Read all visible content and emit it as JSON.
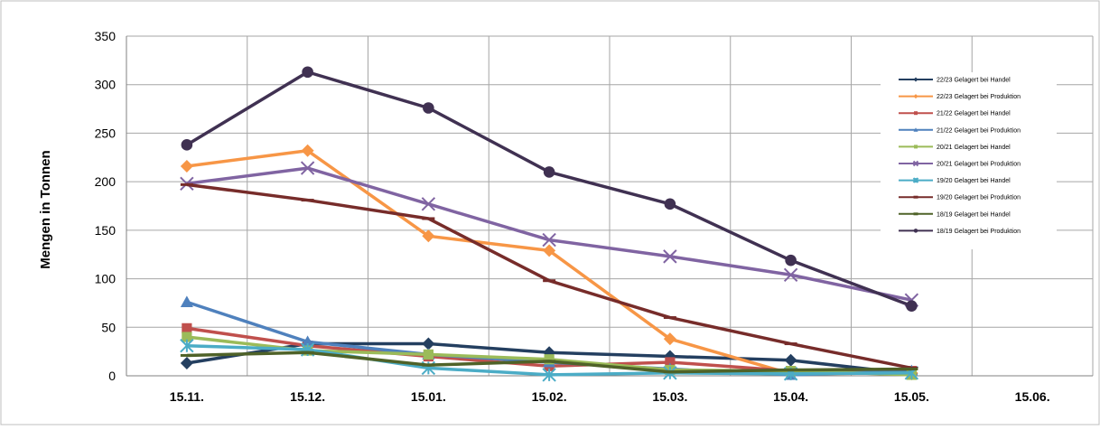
{
  "chart_data": {
    "type": "line",
    "title": "",
    "xlabel": "",
    "ylabel": "Mengen in Tonnen",
    "ylim": [
      0,
      350
    ],
    "yticks": [
      0,
      50,
      100,
      150,
      200,
      250,
      300,
      350
    ],
    "categories": [
      "15.11.",
      "15.12.",
      "15.01.",
      "15.02.",
      "15.03.",
      "15.04.",
      "15.05.",
      "15.06."
    ],
    "grid": true,
    "legend_position": "top-right",
    "series": [
      {
        "name": "22/23 Gelagert bei Handel",
        "color": "#243f60",
        "marker": "diamond",
        "values": [
          13,
          33,
          33,
          24,
          20,
          16,
          2,
          null
        ]
      },
      {
        "name": "22/23 Gelagert bei Produktion",
        "color": "#f79646",
        "marker": "diamond",
        "values": [
          216,
          232,
          144,
          129,
          38,
          2,
          3,
          null
        ]
      },
      {
        "name": "21/22 Gelagert bei Handel",
        "color": "#c0504d",
        "marker": "square",
        "values": [
          49,
          31,
          20,
          10,
          14,
          5,
          5,
          null
        ]
      },
      {
        "name": "21/22 Gelagert bei Produktion",
        "color": "#4f81bd",
        "marker": "triangle",
        "values": [
          76,
          35,
          22,
          14,
          7,
          1,
          5,
          null
        ]
      },
      {
        "name": "20/21 Gelagert bei Handel",
        "color": "#9bbb59",
        "marker": "square",
        "values": [
          40,
          26,
          22,
          17,
          6,
          5,
          1,
          null
        ]
      },
      {
        "name": "20/21 Gelagert bei Produktion",
        "color": "#8064a2",
        "marker": "x",
        "values": [
          198,
          214,
          177,
          140,
          123,
          104,
          78,
          null
        ]
      },
      {
        "name": "19/20 Gelagert bei Handel",
        "color": "#4bacc6",
        "marker": "asterisk",
        "values": [
          31,
          27,
          8,
          1,
          3,
          2,
          3,
          null
        ]
      },
      {
        "name": "19/20 Gelagert bei Produktion",
        "color": "#772c2a",
        "marker": "dash",
        "values": [
          197,
          181,
          162,
          98,
          60,
          33,
          8,
          null
        ]
      },
      {
        "name": "18/19 Gelagert bei Handel",
        "color": "#4f6228",
        "marker": "dash",
        "values": [
          21,
          24,
          11,
          15,
          4,
          6,
          7,
          null
        ]
      },
      {
        "name": "18/19 Gelagert bei Produktion",
        "color": "#403152",
        "marker": "circle",
        "values": [
          238,
          313,
          276,
          210,
          177,
          119,
          72,
          null
        ]
      }
    ]
  }
}
